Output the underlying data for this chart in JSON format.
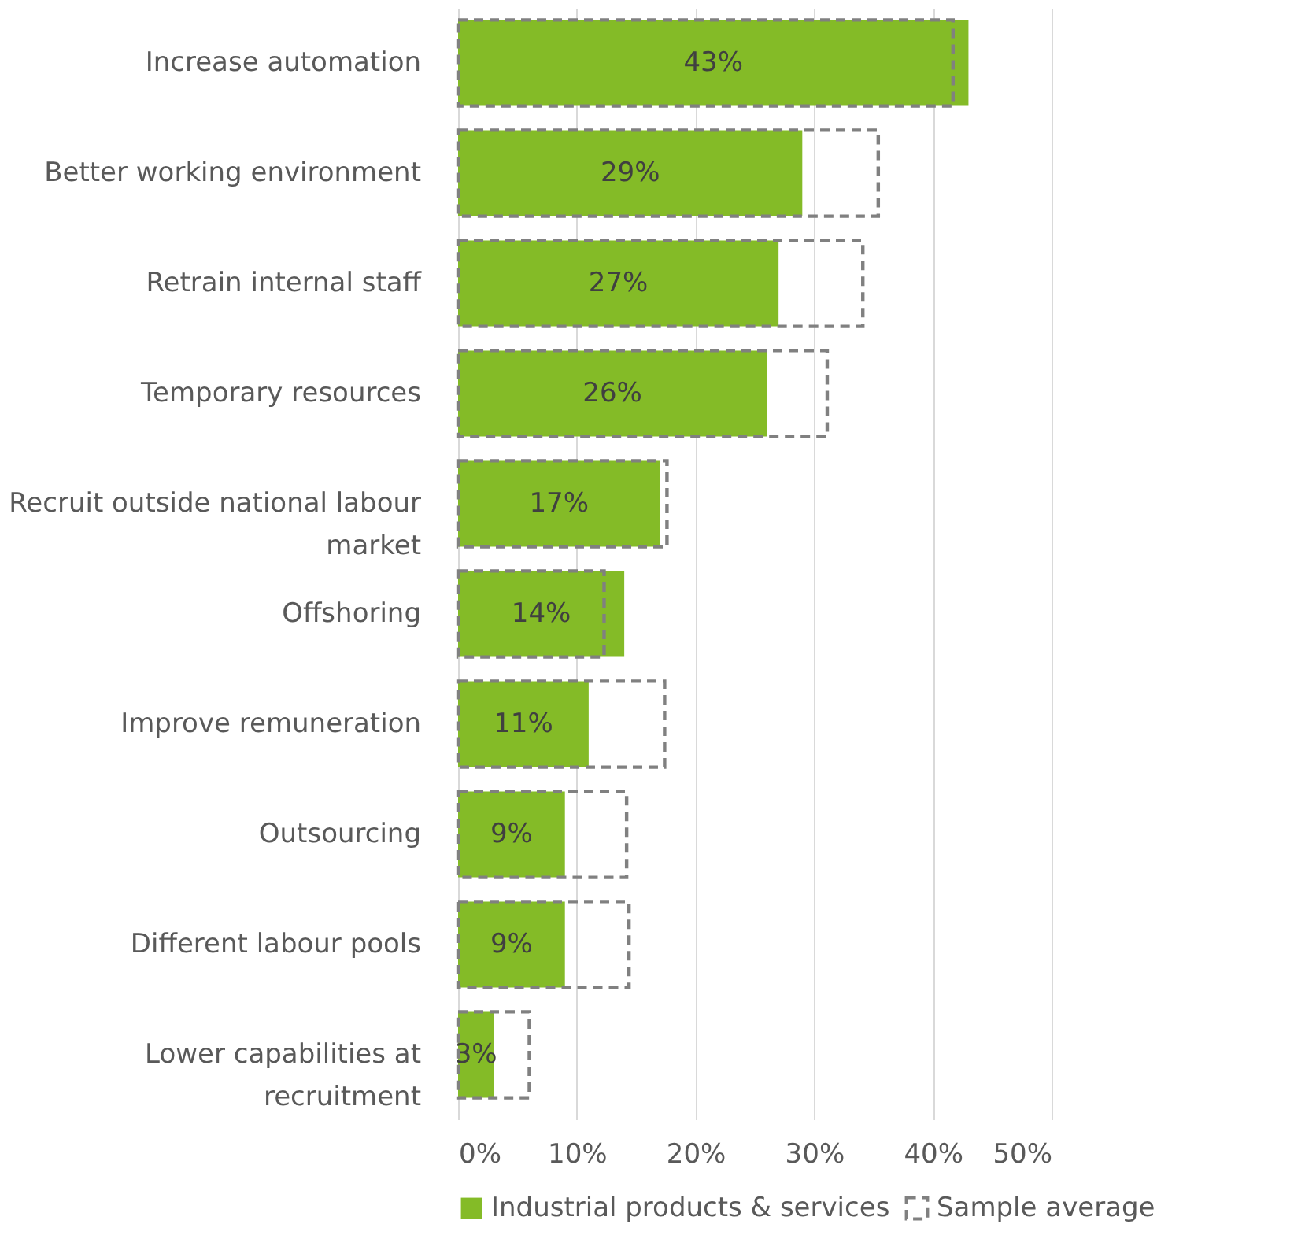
{
  "chart_data": {
    "type": "bar",
    "orientation": "horizontal",
    "categories": [
      "Increase automation",
      "Better working environment",
      "Retrain internal staff",
      "Temporary resources",
      "Recruit outside national labour market",
      "Offshoring",
      "Improve remuneration",
      "Outsourcing",
      "Different labour pools",
      "Lower capabilities at recruitment"
    ],
    "series": [
      {
        "name": "Industrial products & services",
        "color": "#84bb27",
        "values": [
          43,
          29,
          27,
          26,
          17,
          14,
          11,
          9,
          9,
          3
        ],
        "value_labels": [
          "43%",
          "29%",
          "27%",
          "26%",
          "17%",
          "14%",
          "11%",
          "9%",
          "9%",
          "3%"
        ]
      },
      {
        "name": "Sample average",
        "color": "#808080",
        "line_style": "dashed",
        "values": [
          41.7,
          35.4,
          34.1,
          31.1,
          17.6,
          12.3,
          17.4,
          14.2,
          14.4,
          6.0
        ]
      }
    ],
    "xlim": [
      0,
      50
    ],
    "xticks": [
      {
        "value": 0,
        "label": "0%"
      },
      {
        "value": 10,
        "label": "10%"
      },
      {
        "value": 20,
        "label": "20%"
      },
      {
        "value": 30,
        "label": "30%"
      },
      {
        "value": 40,
        "label": "40%"
      },
      {
        "value": 50,
        "label": "50%"
      }
    ],
    "grid": "x",
    "legend": "bottom"
  }
}
